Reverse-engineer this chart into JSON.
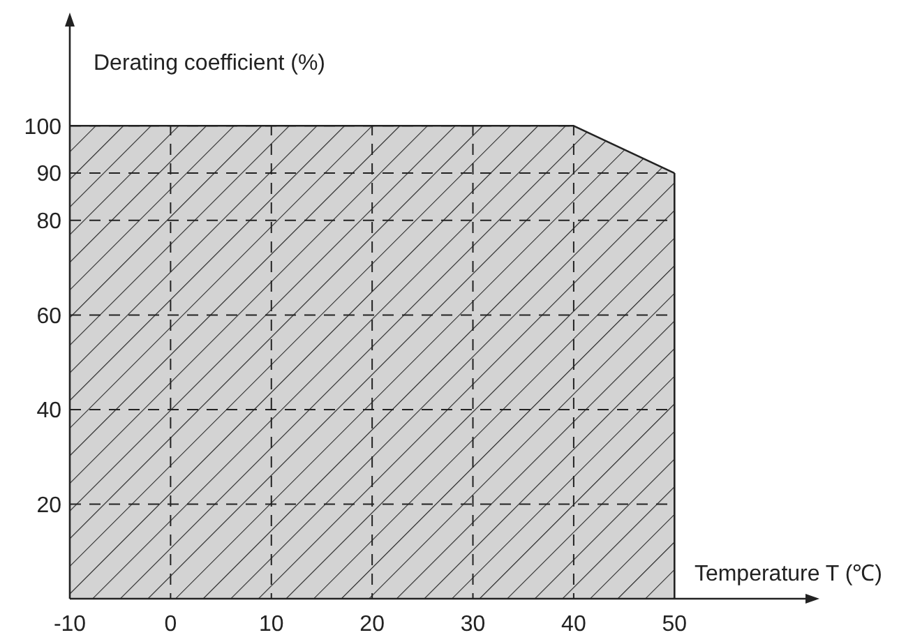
{
  "chart_data": {
    "type": "area",
    "xlabel": "Temperature T (℃)",
    "ylabel": "Derating coefficient (%)",
    "x": [
      -10,
      40,
      50
    ],
    "values": [
      100,
      100,
      90
    ],
    "color": "#222222",
    "xlim": [
      -10,
      63
    ],
    "xticks": [
      -10,
      0,
      10,
      20,
      30,
      40,
      50
    ],
    "ylim": [
      0,
      121
    ],
    "yticks": [
      20,
      40,
      60,
      80,
      90,
      100
    ],
    "grid": true,
    "line_style": "dashed"
  }
}
